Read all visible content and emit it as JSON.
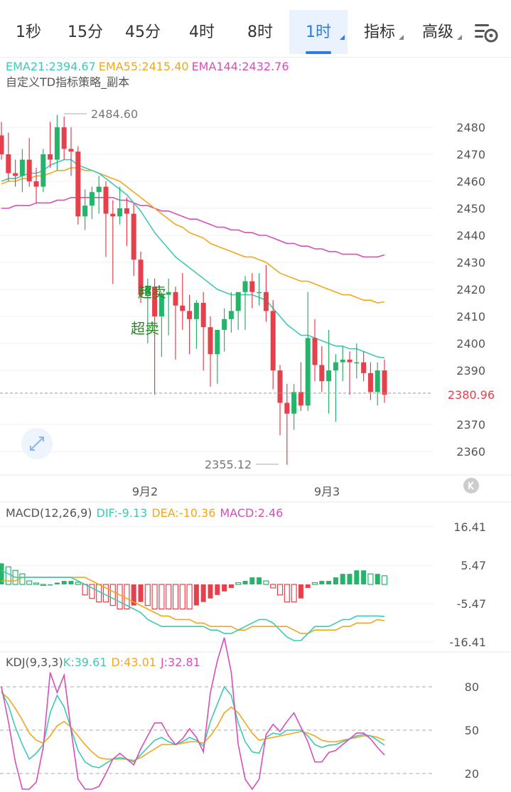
{
  "tabs": [
    {
      "label": "1秒",
      "active": false,
      "dropdown": false
    },
    {
      "label": "15分",
      "active": false,
      "dropdown": false
    },
    {
      "label": "45分",
      "active": false,
      "dropdown": false
    },
    {
      "label": "4时",
      "active": false,
      "dropdown": false
    },
    {
      "label": "8时",
      "active": false,
      "dropdown": false
    },
    {
      "label": "1时",
      "active": true,
      "dropdown": true
    },
    {
      "label": "指标",
      "active": false,
      "dropdown": true
    },
    {
      "label": "高级",
      "active": false,
      "dropdown": true
    }
  ],
  "colors": {
    "up": "#26b36a",
    "down": "#e5404b",
    "ema21": "#3fc9b4",
    "ema55": "#f0a81c",
    "ema144": "#d94dbb",
    "accent": "#2f7be5"
  },
  "icons": {
    "settings": "chart-settings-icon",
    "expand": "expand-icon",
    "scroll": "scroll-end-icon"
  },
  "chart_data": [
    {
      "type": "candlestick",
      "legend": [
        {
          "label": "EMA21:2394.67",
          "color": "#3fc9b4"
        },
        {
          "label": "EMA55:2415.40",
          "color": "#f0a81c"
        },
        {
          "label": "EMA144:2432.76",
          "color": "#d94dbb"
        }
      ],
      "strategy_label": "自定义TD指标策略_副本",
      "y_ticks": [
        "2480",
        "2470",
        "2460",
        "2450",
        "2440",
        "2430",
        "2420",
        "2410",
        "2400",
        "2390",
        "2380",
        "2370",
        "2360"
      ],
      "x_ticks": [
        "9月2",
        "9月3"
      ],
      "ylim": [
        2353,
        2487
      ],
      "high_label": "2484.60",
      "low_label": "2355.12",
      "last_price": "2380.96",
      "signals": [
        "超卖",
        "超卖"
      ],
      "candles": [
        [
          2477,
          2482,
          2468,
          2470
        ],
        [
          2470,
          2478,
          2460,
          2463
        ],
        [
          2463,
          2468,
          2458,
          2462
        ],
        [
          2462,
          2472,
          2456,
          2468
        ],
        [
          2468,
          2476,
          2458,
          2460
        ],
        [
          2460,
          2465,
          2452,
          2458
        ],
        [
          2458,
          2472,
          2456,
          2470
        ],
        [
          2470,
          2482,
          2465,
          2468
        ],
        [
          2468,
          2484.6,
          2464,
          2480
        ],
        [
          2480,
          2484,
          2468,
          2472
        ],
        [
          2472,
          2480,
          2462,
          2471
        ],
        [
          2471,
          2473,
          2444,
          2447
        ],
        [
          2447,
          2457,
          2442,
          2451
        ],
        [
          2451,
          2458,
          2446,
          2456
        ],
        [
          2456,
          2462,
          2448,
          2458
        ],
        [
          2458,
          2460,
          2432,
          2448
        ],
        [
          2448,
          2453,
          2422,
          2447
        ],
        [
          2447,
          2458,
          2444,
          2450
        ],
        [
          2450,
          2454,
          2436,
          2448
        ],
        [
          2448,
          2452,
          2425,
          2431
        ],
        [
          2431,
          2434,
          2415,
          2418
        ],
        [
          2418,
          2424,
          2400,
          2421
        ],
        [
          2421,
          2424,
          2381,
          2410
        ],
        [
          2410,
          2419,
          2395,
          2418
        ],
        [
          2418,
          2424,
          2403,
          2419
        ],
        [
          2419,
          2421,
          2394,
          2414
        ],
        [
          2414,
          2426,
          2405,
          2412
        ],
        [
          2412,
          2418,
          2396,
          2409
        ],
        [
          2409,
          2416,
          2398,
          2415
        ],
        [
          2415,
          2419,
          2390,
          2406
        ],
        [
          2406,
          2410,
          2384,
          2396
        ],
        [
          2396,
          2405,
          2385,
          2405
        ],
        [
          2405,
          2413,
          2397,
          2409
        ],
        [
          2409,
          2419,
          2404,
          2412
        ],
        [
          2412,
          2418,
          2405,
          2419
        ],
        [
          2419,
          2425,
          2405,
          2423
        ],
        [
          2423,
          2426,
          2413,
          2419
        ],
        [
          2419,
          2426,
          2414,
          2419
        ],
        [
          2419,
          2429,
          2408,
          2412
        ],
        [
          2412,
          2416,
          2383,
          2390
        ],
        [
          2390,
          2392,
          2366,
          2378
        ],
        [
          2378,
          2385,
          2355.12,
          2374
        ],
        [
          2374,
          2385,
          2368,
          2382
        ],
        [
          2382,
          2393,
          2375,
          2377
        ],
        [
          2377,
          2419,
          2375,
          2402
        ],
        [
          2402,
          2409,
          2386,
          2392
        ],
        [
          2392,
          2399,
          2382,
          2386
        ],
        [
          2386,
          2405,
          2374,
          2390
        ],
        [
          2390,
          2396,
          2371,
          2393
        ],
        [
          2393,
          2399,
          2386,
          2394
        ],
        [
          2394,
          2397,
          2381,
          2393
        ],
        [
          2393,
          2400,
          2387,
          2393
        ],
        [
          2393,
          2397,
          2386,
          2389
        ],
        [
          2389,
          2393,
          2379,
          2382
        ],
        [
          2382,
          2393,
          2377,
          2390
        ],
        [
          2390,
          2394,
          2378,
          2381
        ]
      ],
      "ema21": [
        2460,
        2461,
        2461,
        2462,
        2463,
        2463,
        2464,
        2466,
        2467,
        2468,
        2468,
        2466,
        2465,
        2464,
        2463,
        2461,
        2459,
        2457,
        2455,
        2452,
        2449,
        2445,
        2441,
        2438,
        2435,
        2432,
        2430,
        2428,
        2426,
        2424,
        2422,
        2420,
        2419,
        2418,
        2418,
        2418,
        2418,
        2417,
        2416,
        2413,
        2410,
        2407,
        2405,
        2403,
        2403,
        2402,
        2401,
        2400,
        2399,
        2399,
        2398,
        2398,
        2397,
        2396,
        2395,
        2394.67
      ],
      "ema55": [
        2459,
        2460,
        2460,
        2461,
        2461,
        2462,
        2462,
        2463,
        2464,
        2464,
        2465,
        2465,
        2464,
        2464,
        2463,
        2462,
        2461,
        2460,
        2458,
        2456,
        2454,
        2452,
        2450,
        2448,
        2446,
        2444,
        2443,
        2441,
        2440,
        2439,
        2437,
        2436,
        2435,
        2434,
        2433,
        2432,
        2432,
        2431,
        2430,
        2428,
        2426,
        2425,
        2424,
        2423,
        2423,
        2422,
        2421,
        2420,
        2419,
        2418,
        2418,
        2417,
        2416,
        2416,
        2415,
        2415.4
      ],
      "ema144": [
        2450,
        2450,
        2451,
        2451,
        2451,
        2452,
        2452,
        2452,
        2453,
        2453,
        2454,
        2454,
        2454,
        2454,
        2454,
        2454,
        2454,
        2453,
        2453,
        2452,
        2451,
        2451,
        2450,
        2449,
        2449,
        2448,
        2447,
        2446,
        2446,
        2445,
        2444,
        2443,
        2443,
        2442,
        2442,
        2441,
        2441,
        2440,
        2440,
        2439,
        2438,
        2437,
        2437,
        2436,
        2436,
        2435,
        2435,
        2434,
        2434,
        2433,
        2433,
        2433,
        2432,
        2432,
        2432,
        2432.76
      ]
    },
    {
      "type": "bar",
      "label": "MACD(12,26,9)",
      "legend": [
        {
          "label": "DIF:-9.13",
          "color": "#3fc9b4"
        },
        {
          "label": "DEA:-10.36",
          "color": "#f0a81c"
        },
        {
          "label": "MACD:2.46",
          "color": "#d94dbb"
        }
      ],
      "y_ticks": [
        "16.41",
        "5.47",
        "-5.47",
        "-16.41"
      ],
      "ylim": [
        -16.41,
        16.41
      ],
      "macd": [
        6,
        5,
        4,
        3,
        1,
        0.4,
        0,
        0,
        0.5,
        1,
        1,
        0.6,
        -3,
        -4,
        -5,
        -5,
        -6,
        -7,
        -7,
        -6,
        -5,
        -6,
        -7,
        -7,
        -7,
        -7,
        -7,
        -7,
        -6,
        -5,
        -4,
        -3,
        -2,
        -1,
        0.5,
        1,
        2,
        2,
        1,
        -1,
        -3,
        -5,
        -5,
        -4,
        -1,
        0.5,
        1,
        1,
        2,
        3,
        3,
        4,
        4,
        3,
        3,
        2.46
      ],
      "dif": [
        4,
        3,
        2,
        2,
        2,
        2,
        2,
        2,
        2,
        2,
        2,
        1,
        0,
        -1,
        -2,
        -3,
        -4,
        -5,
        -6,
        -7,
        -8,
        -10,
        -11,
        -12,
        -12,
        -12,
        -12,
        -12,
        -12,
        -12,
        -13,
        -13,
        -14,
        -14,
        -13,
        -12,
        -11,
        -10,
        -10,
        -11,
        -13,
        -15,
        -16,
        -16,
        -14,
        -12,
        -12,
        -12,
        -11,
        -10,
        -10,
        -9,
        -9,
        -9,
        -9,
        -9.13
      ],
      "dea": [
        1,
        1,
        1,
        2,
        2,
        2,
        2,
        2,
        2,
        2,
        2,
        2,
        2,
        1,
        0,
        -1,
        -2,
        -3,
        -4,
        -5,
        -6,
        -7,
        -8,
        -9,
        -9,
        -10,
        -10,
        -10,
        -11,
        -11,
        -12,
        -12,
        -12,
        -12,
        -13,
        -13,
        -12,
        -12,
        -12,
        -12,
        -12,
        -12,
        -13,
        -14,
        -14,
        -13,
        -13,
        -13,
        -13,
        -12,
        -12,
        -11,
        -11,
        -11,
        -10,
        -10.36
      ]
    },
    {
      "type": "line",
      "label": "KDJ(9,3,3)",
      "legend": [
        {
          "label": "K:39.61",
          "color": "#3fc9b4"
        },
        {
          "label": "D:43.01",
          "color": "#f0a81c"
        },
        {
          "label": "J:32.81",
          "color": "#d94dbb"
        }
      ],
      "y_ticks": [
        "80",
        "50",
        "20"
      ],
      "ylim": [
        8,
        100
      ],
      "k": [
        77,
        67,
        52,
        40,
        30,
        34,
        40,
        62,
        74,
        66,
        51,
        36,
        28,
        25,
        24,
        27,
        30,
        31,
        30,
        28,
        33,
        38,
        43,
        45,
        42,
        40,
        42,
        45,
        43,
        39,
        56,
        68,
        80,
        74,
        55,
        42,
        35,
        34,
        45,
        48,
        47,
        50,
        50,
        50,
        46,
        40,
        38,
        39.61,
        40,
        42,
        44,
        46,
        47,
        46,
        43,
        39.61
      ],
      "d": [
        76,
        72,
        65,
        57,
        48,
        43,
        41,
        46,
        53,
        56,
        52,
        46,
        40,
        35,
        31,
        30,
        30,
        30,
        30,
        29,
        31,
        34,
        37,
        40,
        40,
        40,
        41,
        42,
        42,
        41,
        46,
        53,
        62,
        66,
        62,
        55,
        48,
        43,
        44,
        45,
        46,
        47,
        48,
        49,
        48,
        46,
        43,
        42,
        42,
        43,
        44,
        45,
        46,
        46,
        45,
        43.01
      ],
      "j": [
        80,
        56,
        28,
        8,
        -5,
        14,
        38,
        90,
        76,
        88,
        50,
        16,
        6,
        6,
        11,
        20,
        30,
        34,
        30,
        26,
        37,
        46,
        55,
        55,
        46,
        40,
        44,
        51,
        45,
        35,
        76,
        98,
        114,
        90,
        40,
        16,
        9,
        16,
        47,
        54,
        49,
        56,
        62,
        52,
        42,
        28,
        28,
        34.5,
        36,
        40,
        44,
        48,
        48,
        44,
        38,
        32.81
      ]
    }
  ]
}
